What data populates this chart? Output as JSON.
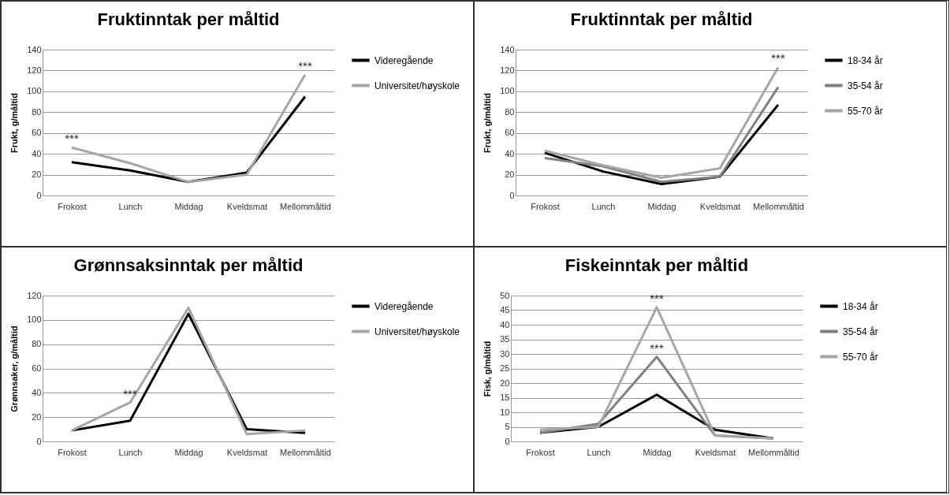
{
  "chart_data": [
    {
      "type": "line",
      "title": "Fruktinntak per måltid",
      "ylabel": "Frukt, g/måltid",
      "categories": [
        "Frokost",
        "Lunch",
        "Middag",
        "Kveldsmat",
        "Mellommåltid"
      ],
      "ylim": [
        0,
        140
      ],
      "yticks": [
        0,
        20,
        40,
        60,
        80,
        100,
        120,
        140
      ],
      "grid": "y",
      "legend": "right",
      "series": [
        {
          "name": "Videregående",
          "color": "#000000",
          "values": [
            32,
            24,
            13,
            22,
            95
          ]
        },
        {
          "name": "Universitet/høyskole",
          "color": "#a6a6a6",
          "values": [
            46,
            31,
            13,
            20,
            116
          ]
        }
      ],
      "annotations": [
        {
          "text": "***",
          "x": "Frokost",
          "y": 46
        },
        {
          "text": "***",
          "x": "Mellommåltid",
          "y": 116
        }
      ]
    },
    {
      "type": "line",
      "title": "Fruktinntak per måltid",
      "ylabel": "Frukt, g/måltid",
      "categories": [
        "Frokost",
        "Lunch",
        "Middag",
        "Kveldsmat",
        "Mellommåltid"
      ],
      "ylim": [
        0,
        140
      ],
      "yticks": [
        0,
        20,
        40,
        60,
        80,
        100,
        120,
        140
      ],
      "grid": "y",
      "legend": "right",
      "series": [
        {
          "name": "18-34 år",
          "color": "#000000",
          "values": [
            41,
            23,
            11,
            18,
            87
          ]
        },
        {
          "name": "35-54 år",
          "color": "#808080",
          "values": [
            36,
            28,
            13,
            18,
            104
          ]
        },
        {
          "name": "55-70 år",
          "color": "#a6a6a6",
          "values": [
            43,
            29,
            17,
            26,
            123
          ]
        }
      ],
      "annotations": [
        {
          "text": "***",
          "x": "Mellommåltid",
          "y": 123
        }
      ]
    },
    {
      "type": "line",
      "title": "Grønnsaksinntak per måltid",
      "ylabel": "Grønnsaker, g/måltid",
      "categories": [
        "Frokost",
        "Lunch",
        "Middag",
        "Kveldsmat",
        "Mellommåltid"
      ],
      "ylim": [
        0,
        120
      ],
      "yticks": [
        0,
        20,
        40,
        60,
        80,
        100,
        120
      ],
      "grid": "y",
      "legend": "right",
      "series": [
        {
          "name": "Videregående",
          "color": "#000000",
          "values": [
            9,
            17,
            105,
            10,
            7
          ]
        },
        {
          "name": "Universitet/høyskole",
          "color": "#a6a6a6",
          "values": [
            9,
            32,
            110,
            6,
            9
          ]
        }
      ],
      "annotations": [
        {
          "text": "***",
          "x": "Lunch",
          "y": 32
        }
      ]
    },
    {
      "type": "line",
      "title": "Fiskeinntak per måltid",
      "ylabel": "Fisk, g/måltid",
      "categories": [
        "Frokost",
        "Lunch",
        "Middag",
        "Kveldsmat",
        "Mellommåltid"
      ],
      "ylim": [
        0,
        50
      ],
      "yticks": [
        0,
        5,
        10,
        15,
        20,
        25,
        30,
        35,
        40,
        45,
        50
      ],
      "grid": "y",
      "legend": "right",
      "series": [
        {
          "name": "18-34 år",
          "color": "#000000",
          "values": [
            3,
            5,
            16,
            4,
            1
          ]
        },
        {
          "name": "35-54 år",
          "color": "#808080",
          "values": [
            3,
            6,
            29,
            2,
            1
          ]
        },
        {
          "name": "55-70 år",
          "color": "#a6a6a6",
          "values": [
            4,
            5,
            46,
            2,
            1
          ]
        }
      ],
      "annotations": [
        {
          "text": "***",
          "x": "Middag",
          "y": 46
        },
        {
          "text": "***",
          "x": "Middag",
          "y": 29
        }
      ]
    }
  ]
}
